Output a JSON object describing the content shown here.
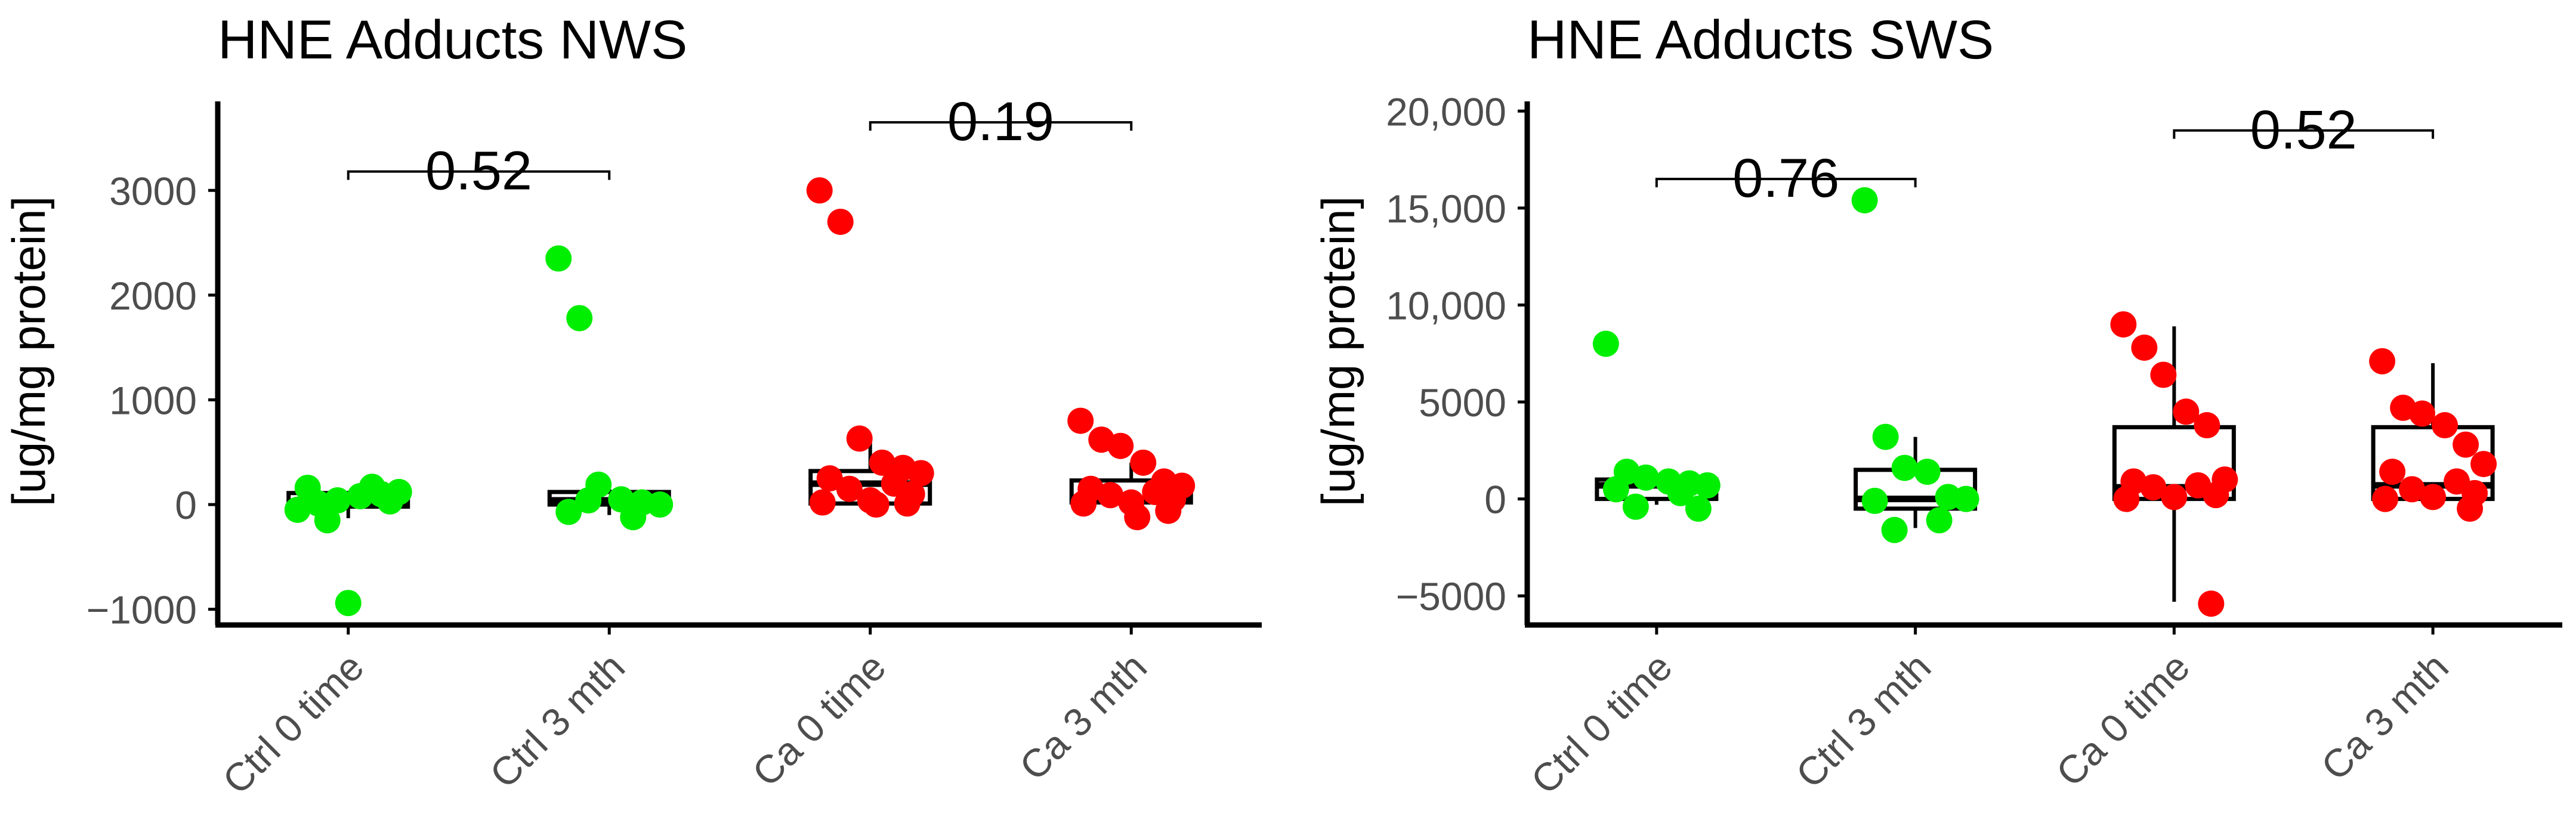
{
  "colors": {
    "ctrl": "#00ee00",
    "ca": "#ff0000"
  },
  "chart_data": [
    {
      "type": "box-strip",
      "title": "HNE Adducts NWS",
      "ylabel": "[ug/mg protein]",
      "ylim": [
        -1150,
        3850
      ],
      "yticks": [
        -1000,
        0,
        1000,
        2000,
        3000
      ],
      "ytick_labels": [
        "−1000",
        "0",
        "1000",
        "2000",
        "3000"
      ],
      "categories": [
        "Ctrl 0 time",
        "Ctrl 3 mth",
        "Ca 0 time",
        "Ca 3 mth"
      ],
      "groups": [
        {
          "name": "Ctrl 0 time",
          "color_key": "ctrl",
          "box": {
            "q1": -20,
            "median": 20,
            "q3": 110,
            "whisker_low": -130,
            "whisker_high": 130
          },
          "points": [
            -50,
            10,
            40,
            80,
            100,
            120,
            160,
            170,
            -150,
            30,
            -940
          ]
        },
        {
          "name": "Ctrl 3 mth",
          "color_key": "ctrl",
          "box": {
            "q1": 0,
            "median": 40,
            "q3": 120,
            "whisker_low": -100,
            "whisker_high": 170
          },
          "points": [
            2350,
            1780,
            190,
            50,
            20,
            0,
            -70,
            -120,
            40
          ]
        },
        {
          "name": "Ca 0 time",
          "color_key": "ca",
          "box": {
            "q1": 10,
            "median": 200,
            "q3": 320,
            "whisker_low": 0,
            "whisker_high": 620
          },
          "points": [
            3000,
            2700,
            630,
            400,
            350,
            300,
            250,
            200,
            150,
            100,
            40,
            20,
            10,
            0
          ]
        },
        {
          "name": "Ca 3 mth",
          "color_key": "ca",
          "box": {
            "q1": 20,
            "median": 50,
            "q3": 230,
            "whisker_low": -80,
            "whisker_high": 400
          },
          "points": [
            800,
            620,
            560,
            400,
            220,
            180,
            150,
            120,
            90,
            50,
            20,
            10,
            -60,
            -120
          ]
        }
      ],
      "comparisons": [
        {
          "label": "0.52",
          "from": "Ctrl 0 time",
          "to": "Ctrl 3 mth",
          "y": 3180
        },
        {
          "label": "0.19",
          "from": "Ca 0 time",
          "to": "Ca 3 mth",
          "y": 3650
        }
      ],
      "grid": false,
      "legend": "none"
    },
    {
      "type": "box-strip",
      "title": "HNE Adducts SWS",
      "ylabel": "[ug/mg protein]",
      "ylim": [
        -6500,
        20500
      ],
      "yticks": [
        -5000,
        0,
        5000,
        10000,
        15000,
        20000
      ],
      "ytick_labels": [
        "−5000",
        "0",
        "5000",
        "10,000",
        "15,000",
        "20,000"
      ],
      "categories": [
        "Ctrl 0 time",
        "Ctrl 3 mth",
        "Ca 0 time",
        "Ca 3 mth"
      ],
      "groups": [
        {
          "name": "Ctrl 0 time",
          "color_key": "ctrl",
          "box": {
            "q1": 0,
            "median": 700,
            "q3": 1000,
            "whisker_low": -300,
            "whisker_high": 1300
          },
          "points": [
            8000,
            1400,
            1100,
            900,
            800,
            700,
            500,
            300,
            -400,
            -500
          ]
        },
        {
          "name": "Ctrl 3 mth",
          "color_key": "ctrl",
          "box": {
            "q1": -500,
            "median": 0,
            "q3": 1500,
            "whisker_low": -1500,
            "whisker_high": 3200
          },
          "points": [
            15400,
            3200,
            1600,
            1400,
            100,
            0,
            -100,
            -1100,
            -1600
          ]
        },
        {
          "name": "Ca 0 time",
          "color_key": "ca",
          "box": {
            "q1": 0,
            "median": 600,
            "q3": 3700,
            "whisker_low": -5300,
            "whisker_high": 8900
          },
          "points": [
            9000,
            7800,
            6400,
            4500,
            3800,
            1000,
            900,
            700,
            600,
            200,
            100,
            0,
            -5400
          ]
        },
        {
          "name": "Ca 3 mth",
          "color_key": "ca",
          "box": {
            "q1": 0,
            "median": 700,
            "q3": 3700,
            "whisker_low": -400,
            "whisker_high": 7000
          },
          "points": [
            7100,
            4700,
            4400,
            3800,
            2800,
            1800,
            1400,
            900,
            500,
            300,
            100,
            0,
            -500
          ]
        }
      ],
      "comparisons": [
        {
          "label": "0.76",
          "from": "Ctrl 0 time",
          "to": "Ctrl 3 mth",
          "y": 16500
        },
        {
          "label": "0.52",
          "from": "Ca 0 time",
          "to": "Ca 3 mth",
          "y": 19000
        }
      ],
      "grid": false,
      "legend": "none"
    }
  ]
}
